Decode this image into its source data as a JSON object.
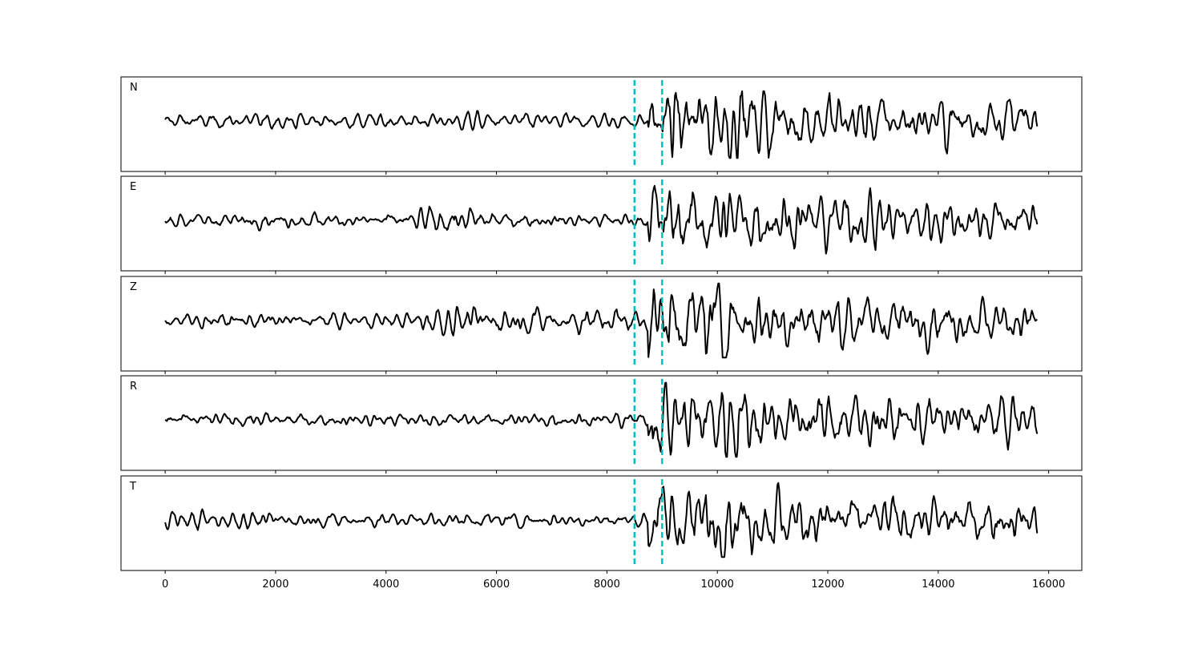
{
  "chart_data": {
    "type": "line",
    "panels": [
      {
        "label": "N"
      },
      {
        "label": "E"
      },
      {
        "label": "Z"
      },
      {
        "label": "R"
      },
      {
        "label": "T"
      }
    ],
    "xlim": [
      -800,
      16600
    ],
    "x_data_range": [
      0,
      15800
    ],
    "xticks": [
      0,
      2000,
      4000,
      6000,
      8000,
      10000,
      12000,
      14000,
      16000
    ],
    "xtick_labels": [
      "0",
      "2000",
      "4000",
      "6000",
      "8000",
      "10000",
      "12000",
      "14000",
      "16000"
    ],
    "y_ticks_shown": false,
    "shared_x": true,
    "grid": false,
    "line_color": "#000000",
    "markers": [
      {
        "x": 8500,
        "style": "dashed",
        "color": "#00bfbf"
      },
      {
        "x": 9000,
        "style": "dashed",
        "color": "#00bfbf"
      }
    ]
  }
}
